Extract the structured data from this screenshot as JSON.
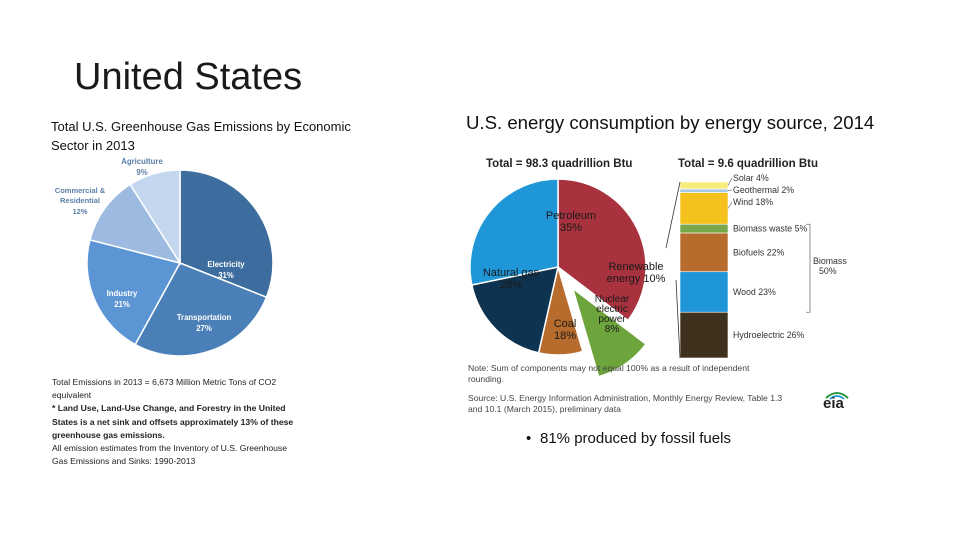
{
  "slide": {
    "title": "United States",
    "bullet": "81% produced by fossil fuels",
    "bullet_marker": "•"
  },
  "chart_data": [
    {
      "type": "pie",
      "title": "Total U.S. Greenhouse Gas Emissions by Economic Sector in 2013",
      "slices": [
        {
          "name": "Electricity",
          "value": 31,
          "label": "31%",
          "color": "#3d6d9e"
        },
        {
          "name": "Transportation",
          "value": 27,
          "label": "27%",
          "color": "#4b7fb8"
        },
        {
          "name": "Industry",
          "value": 21,
          "label": "21%",
          "color": "#5b95d4"
        },
        {
          "name": "Commercial & Residential",
          "value": 12,
          "label": "12%",
          "color": "#9dbbe0"
        },
        {
          "name": "Agriculture",
          "value": 9,
          "label": "9%",
          "color": "#c4d7ee"
        }
      ],
      "notes": [
        "Total Emissions in 2013 = 6,673 Million Metric Tons of CO2",
        "equivalent",
        "* Land Use, Land-Use Change, and Forestry in the United",
        "States is a net sink and offsets approximately 13% of these",
        "greenhouse gas emissions.",
        "All emission estimates from the Inventory of U.S. Greenhouse",
        "Gas Emissions and Sinks: 1990-2013"
      ]
    },
    {
      "type": "pie",
      "title": "U.S. energy consumption by energy source, 2014",
      "total_label": "Total = 98.3 quadrillion Btu",
      "slices": [
        {
          "name": "Petroleum",
          "value": 35,
          "label": "35%",
          "color": "#a8323e"
        },
        {
          "name": "Renewable energy",
          "value": 10,
          "label": "10%",
          "color": "#6ea43c"
        },
        {
          "name": "Nuclear electric power",
          "value": 8,
          "label": "8%",
          "color": "#b76b2c"
        },
        {
          "name": "Coal",
          "value": 18,
          "label": "18%",
          "color": "#0d3350"
        },
        {
          "name": "Natural gas",
          "value": 28,
          "label": "28%",
          "color": "#1f96d8"
        }
      ]
    },
    {
      "type": "bar",
      "title": "Renewable energy breakdown",
      "total_label": "Total = 9.6 quadrillion Btu",
      "segments": [
        {
          "name": "Solar",
          "value": 4,
          "label": "Solar 4%",
          "color": "#f7ec7a"
        },
        {
          "name": "Geothermal",
          "value": 2,
          "label": "Geothermal 2%",
          "color": "#a8c8e6"
        },
        {
          "name": "Wind",
          "value": 18,
          "label": "Wind 18%",
          "color": "#f5c11c"
        },
        {
          "name": "Biomass waste",
          "value": 5,
          "label": "Biomass waste 5%",
          "color": "#76a84a"
        },
        {
          "name": "Biofuels",
          "value": 22,
          "label": "Biofuels 22%",
          "color": "#b76b2c"
        },
        {
          "name": "Wood",
          "value": 23,
          "label": "Wood 23%",
          "color": "#1f96d8"
        },
        {
          "name": "Hydroelectric",
          "value": 26,
          "label": "Hydroelectric 26%",
          "color": "#3e321e"
        }
      ],
      "group": {
        "name": "Biomass",
        "value": 50,
        "label_line1": "Biomass",
        "label_line2": "50%"
      },
      "notes": [
        "Note: Sum of components may not equal 100% as a result of independent",
        "rounding.",
        "Source: U.S. Energy Information Administration, Monthly Energy Review, Table 1.3",
        "and 10.1 (March 2015), preliminary data"
      ],
      "logo_text": "eia"
    }
  ]
}
